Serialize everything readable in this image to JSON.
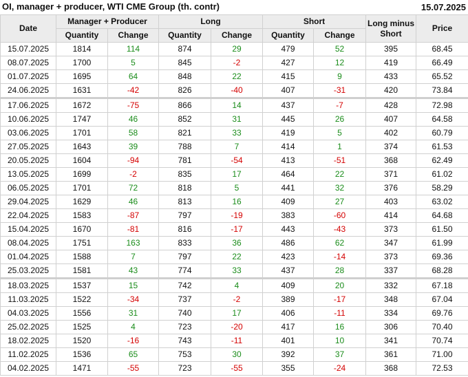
{
  "title": "OI, manager + producer, WTI CME Group (th. contr)",
  "report_date": "15.07.2025",
  "colors": {
    "positive": "#1a8c1a",
    "negative": "#d40000",
    "header_bg": "#ececec"
  },
  "headers": {
    "date": "Date",
    "manager_producer": "Manager + Producer",
    "long": "Long",
    "short": "Short",
    "long_minus_short_1": "Long minus",
    "long_minus_short_2": "Short",
    "price": "Price",
    "quantity": "Quantity",
    "change": "Change"
  },
  "rows": [
    [
      "15.07.2025",
      "1814",
      "114",
      "874",
      "29",
      "479",
      "52",
      "395",
      "68.45"
    ],
    [
      "08.07.2025",
      "1700",
      "5",
      "845",
      "-2",
      "427",
      "12",
      "419",
      "66.49"
    ],
    [
      "01.07.2025",
      "1695",
      "64",
      "848",
      "22",
      "415",
      "9",
      "433",
      "65.52"
    ],
    [
      "24.06.2025",
      "1631",
      "-42",
      "826",
      "-40",
      "407",
      "-31",
      "420",
      "73.84"
    ],
    [
      "17.06.2025",
      "1672",
      "-75",
      "866",
      "14",
      "437",
      "-7",
      "428",
      "72.98"
    ],
    [
      "10.06.2025",
      "1747",
      "46",
      "852",
      "31",
      "445",
      "26",
      "407",
      "64.58"
    ],
    [
      "03.06.2025",
      "1701",
      "58",
      "821",
      "33",
      "419",
      "5",
      "402",
      "60.79"
    ],
    [
      "27.05.2025",
      "1643",
      "39",
      "788",
      "7",
      "414",
      "1",
      "374",
      "61.53"
    ],
    [
      "20.05.2025",
      "1604",
      "-94",
      "781",
      "-54",
      "413",
      "-51",
      "368",
      "62.49"
    ],
    [
      "13.05.2025",
      "1699",
      "-2",
      "835",
      "17",
      "464",
      "22",
      "371",
      "61.02"
    ],
    [
      "06.05.2025",
      "1701",
      "72",
      "818",
      "5",
      "441",
      "32",
      "376",
      "58.29"
    ],
    [
      "29.04.2025",
      "1629",
      "46",
      "813",
      "16",
      "409",
      "27",
      "403",
      "63.02"
    ],
    [
      "22.04.2025",
      "1583",
      "-87",
      "797",
      "-19",
      "383",
      "-60",
      "414",
      "64.68"
    ],
    [
      "15.04.2025",
      "1670",
      "-81",
      "816",
      "-17",
      "443",
      "-43",
      "373",
      "61.50"
    ],
    [
      "08.04.2025",
      "1751",
      "163",
      "833",
      "36",
      "486",
      "62",
      "347",
      "61.99"
    ],
    [
      "01.04.2025",
      "1588",
      "7",
      "797",
      "22",
      "423",
      "-14",
      "373",
      "69.36"
    ],
    [
      "25.03.2025",
      "1581",
      "43",
      "774",
      "33",
      "437",
      "28",
      "337",
      "68.28"
    ],
    [
      "18.03.2025",
      "1537",
      "15",
      "742",
      "4",
      "409",
      "20",
      "332",
      "67.18"
    ],
    [
      "11.03.2025",
      "1522",
      "-34",
      "737",
      "-2",
      "389",
      "-17",
      "348",
      "67.04"
    ],
    [
      "04.03.2025",
      "1556",
      "31",
      "740",
      "17",
      "406",
      "-11",
      "334",
      "69.76"
    ],
    [
      "25.02.2025",
      "1525",
      "4",
      "723",
      "-20",
      "417",
      "16",
      "306",
      "70.40"
    ],
    [
      "18.02.2025",
      "1520",
      "-16",
      "743",
      "-11",
      "401",
      "10",
      "341",
      "70.74"
    ],
    [
      "11.02.2025",
      "1536",
      "65",
      "753",
      "30",
      "392",
      "37",
      "361",
      "71.00"
    ],
    [
      "04.02.2025",
      "1471",
      "-55",
      "723",
      "-55",
      "355",
      "-24",
      "368",
      "72.53"
    ]
  ]
}
